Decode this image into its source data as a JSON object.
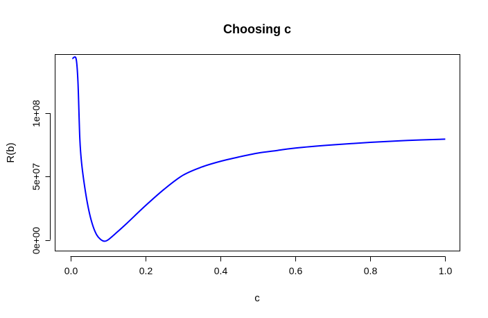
{
  "chart_data": {
    "type": "line",
    "title": "Choosing c",
    "xlabel": "c",
    "ylabel": "R(b)",
    "xlim": [
      -0.04,
      1.04
    ],
    "ylim": [
      -9000000.0,
      146000000.0
    ],
    "xticks": [
      0.0,
      0.2,
      0.4,
      0.6,
      0.8,
      1.0
    ],
    "xtick_labels": [
      "0.0",
      "0.2",
      "0.4",
      "0.6",
      "0.8",
      "1.0"
    ],
    "yticks": [
      0,
      50000000,
      100000000
    ],
    "ytick_labels": [
      "0e+00",
      "5e+07",
      "1e+08"
    ],
    "grid": false,
    "series": [
      {
        "color": "#0000ff",
        "x": [
          0.005,
          0.015,
          0.02,
          0.025,
          0.03,
          0.04,
          0.05,
          0.06,
          0.07,
          0.08,
          0.09,
          0.1,
          0.12,
          0.15,
          0.2,
          0.25,
          0.3,
          0.35,
          0.4,
          0.45,
          0.5,
          0.55,
          0.6,
          0.7,
          0.8,
          0.9,
          1.0
        ],
        "y": [
          143000000,
          143000000,
          125000000,
          80000000,
          60000000,
          38000000,
          22000000,
          11000000,
          4000000,
          500000,
          -1000000,
          0,
          5000000,
          13000000,
          27000000,
          40000000,
          51000000,
          57500000,
          62000000,
          65500000,
          68500000,
          70500000,
          72500000,
          75000000,
          77000000,
          78500000,
          79500000
        ]
      }
    ]
  }
}
